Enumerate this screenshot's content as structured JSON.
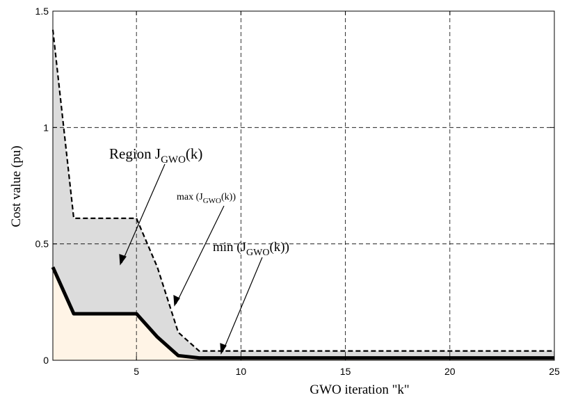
{
  "chart_data": {
    "type": "area",
    "title": "",
    "xlabel": "GWO iteration \"k\"",
    "ylabel": "Cost value (pu)",
    "xlim": [
      1,
      25
    ],
    "ylim": [
      0,
      1.5
    ],
    "xticks": [
      5,
      10,
      15,
      20,
      25
    ],
    "yticks": [
      0,
      0.5,
      1,
      1.5
    ],
    "ytick_labels": [
      "0",
      "0.5",
      "1",
      "1.5"
    ],
    "grid": true,
    "series": [
      {
        "style": "dashed",
        "x": [
          1,
          2,
          3,
          4,
          5,
          6,
          7,
          8,
          9,
          10,
          11,
          12,
          13,
          14,
          15,
          16,
          17,
          18,
          19,
          20,
          21,
          22,
          23,
          24,
          25
        ],
        "values": [
          1.42,
          0.61,
          0.61,
          0.61,
          0.61,
          0.4,
          0.12,
          0.04,
          0.04,
          0.04,
          0.04,
          0.04,
          0.04,
          0.04,
          0.04,
          0.04,
          0.04,
          0.04,
          0.04,
          0.04,
          0.04,
          0.04,
          0.04,
          0.04,
          0.04
        ]
      },
      {
        "style": "solid-thick",
        "x": [
          1,
          2,
          3,
          4,
          5,
          6,
          7,
          8,
          9,
          10,
          11,
          12,
          13,
          14,
          15,
          16,
          17,
          18,
          19,
          20,
          21,
          22,
          23,
          24,
          25
        ],
        "values": [
          0.4,
          0.2,
          0.2,
          0.2,
          0.2,
          0.1,
          0.02,
          0.01,
          0.01,
          0.01,
          0.01,
          0.01,
          0.01,
          0.01,
          0.01,
          0.01,
          0.01,
          0.01,
          0.01,
          0.01,
          0.01,
          0.01,
          0.01,
          0.01,
          0.01
        ]
      }
    ],
    "annotations": {
      "region": {
        "text": "Region J",
        "sub": "GWO",
        "suffix": "(k)"
      },
      "max": {
        "text": "max (J",
        "sub": "GWO",
        "suffix": "(k))"
      },
      "min": {
        "text": "min (J",
        "sub": "GWO",
        "suffix": "(k))"
      }
    },
    "colors": {
      "region_fill": "#dcdcdc",
      "under_min_fill": "#fff4e6",
      "line": "#000000",
      "grid": "#000000"
    }
  }
}
